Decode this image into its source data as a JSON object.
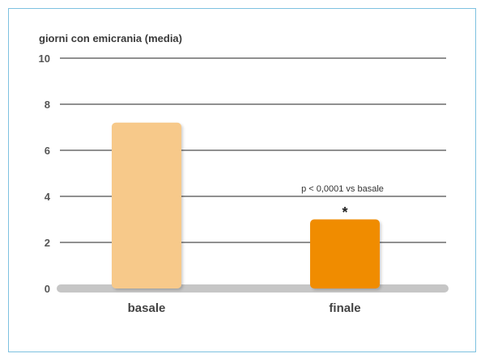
{
  "chart_data": {
    "type": "bar",
    "title": "",
    "ylabel": "giorni con emicrania (media)",
    "xlabel": "",
    "categories": [
      "basale",
      "finale"
    ],
    "values": [
      7.2,
      3.0
    ],
    "bar_colors": [
      "#f7c98a",
      "#f08c00"
    ],
    "ylim": [
      0,
      10
    ],
    "yticks": [
      "0",
      "2",
      "4",
      "6",
      "8",
      "10"
    ],
    "grid": true,
    "annotation": {
      "text": "p < 0,0001 vs basale",
      "marker": "*",
      "category": "finale"
    }
  }
}
